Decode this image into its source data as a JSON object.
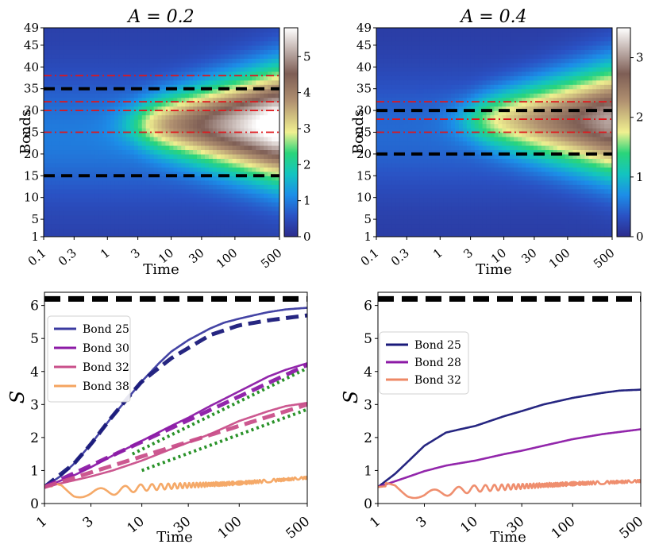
{
  "chart_data": [
    {
      "type": "heatmap",
      "title": "A = 0.2",
      "xlabel": "Time",
      "ylabel": "Bonds",
      "x_scale": "log",
      "xlim": [
        0.1,
        500
      ],
      "ylim": [
        1,
        49
      ],
      "x_ticks": [
        0.1,
        0.3,
        1,
        3,
        10,
        30,
        100,
        500
      ],
      "x_tick_labels": [
        "0.1",
        "0.3",
        "1",
        "3",
        "10",
        "30",
        "100",
        "500"
      ],
      "y_ticks": [
        1,
        5,
        10,
        15,
        20,
        25,
        30,
        35,
        40,
        45,
        49
      ],
      "y_tick_labels": [
        "1",
        "5",
        "10",
        "15",
        "20",
        "25",
        "30",
        "35",
        "40",
        "45",
        "49"
      ],
      "colorbar": {
        "min": 0,
        "max": 5.8,
        "ticks": [
          0,
          1,
          2,
          3,
          4,
          5
        ],
        "tick_labels": [
          "0",
          "1",
          "2",
          "3",
          "4",
          "5"
        ]
      },
      "front_onset_time": 2.5,
      "peak_center_bond": 24,
      "black_dashed_lines": [
        15,
        35
      ],
      "red_dashdot_lines": [
        25,
        30,
        32,
        38
      ]
    },
    {
      "type": "heatmap",
      "title": "A = 0.4",
      "xlabel": "Time",
      "ylabel": "Bonds",
      "x_scale": "log",
      "xlim": [
        0.1,
        500
      ],
      "ylim": [
        1,
        49
      ],
      "x_ticks": [
        0.1,
        0.3,
        1,
        3,
        10,
        30,
        100,
        500
      ],
      "x_tick_labels": [
        "0.1",
        "0.3",
        "1",
        "3",
        "10",
        "30",
        "100",
        "500"
      ],
      "y_ticks": [
        1,
        5,
        10,
        15,
        20,
        25,
        30,
        35,
        40,
        45,
        49
      ],
      "y_tick_labels": [
        "1",
        "5",
        "10",
        "15",
        "20",
        "25",
        "30",
        "35",
        "40",
        "45",
        "49"
      ],
      "colorbar": {
        "min": 0,
        "max": 3.5,
        "ticks": [
          0,
          1,
          2,
          3
        ],
        "tick_labels": [
          "0",
          "1",
          "2",
          "3"
        ]
      },
      "front_onset_time": 2.5,
      "peak_center_bond": 25,
      "black_dashed_lines": [
        20,
        30
      ],
      "red_dashdot_lines": [
        25,
        28,
        32
      ]
    },
    {
      "type": "line",
      "title": "",
      "xlabel": "Time",
      "ylabel": "S",
      "x_scale": "log",
      "xlim": [
        1,
        500
      ],
      "ylim": [
        0,
        6.4
      ],
      "x_ticks": [
        1,
        3,
        10,
        30,
        100,
        500
      ],
      "x_tick_labels": [
        "1",
        "3",
        "10",
        "30",
        "100",
        "500"
      ],
      "y_ticks": [
        0,
        1,
        2,
        3,
        4,
        5,
        6
      ],
      "y_tick_labels": [
        "0",
        "1",
        "2",
        "3",
        "4",
        "5",
        "6"
      ],
      "reference_line": 6.2,
      "legend_position": "upper-left",
      "series": [
        {
          "name": "Bond 25",
          "color": "#3a3aa0",
          "t": [
            1,
            1.5,
            2,
            3,
            5,
            7,
            10,
            15,
            20,
            30,
            50,
            70,
            100,
            150,
            200,
            300,
            500
          ],
          "values": [
            0.5,
            0.85,
            1.2,
            1.8,
            2.65,
            3.15,
            3.7,
            4.25,
            4.6,
            4.95,
            5.3,
            5.48,
            5.6,
            5.72,
            5.8,
            5.88,
            5.93
          ]
        },
        {
          "name": "Bond 30",
          "color": "#8c1aa6",
          "t": [
            1,
            2,
            3,
            5,
            10,
            20,
            30,
            50,
            100,
            200,
            300,
            500
          ],
          "values": [
            0.5,
            0.85,
            1.1,
            1.45,
            1.9,
            2.35,
            2.6,
            2.95,
            3.4,
            3.85,
            4.05,
            4.25
          ]
        },
        {
          "name": "Bond 32",
          "color": "#c94f8a",
          "t": [
            1,
            2,
            3,
            5,
            10,
            20,
            30,
            50,
            100,
            200,
            300,
            500
          ],
          "values": [
            0.5,
            0.7,
            0.82,
            1.0,
            1.3,
            1.65,
            1.85,
            2.1,
            2.5,
            2.8,
            2.95,
            3.05
          ]
        },
        {
          "name": "Bond 38",
          "color": "#f4a460",
          "t": [
            1,
            1.5,
            2,
            3,
            5,
            10,
            30,
            100,
            500
          ],
          "values": [
            0.5,
            0.55,
            0.35,
            0.3,
            0.38,
            0.48,
            0.55,
            0.62,
            0.78
          ]
        }
      ],
      "fits": [
        {
          "style": "dashed",
          "color": "#1a1a7a",
          "t": [
            1,
            2,
            3,
            5,
            10,
            20,
            50,
            100,
            200,
            500
          ],
          "values": [
            0.5,
            1.2,
            1.8,
            2.65,
            3.7,
            4.4,
            5.1,
            5.4,
            5.55,
            5.7
          ]
        },
        {
          "style": "dashed",
          "color": "#8c1aa6",
          "t": [
            1,
            500
          ],
          "values": [
            0.5,
            4.2
          ]
        },
        {
          "style": "dashed",
          "color": "#c94f8a",
          "t": [
            1,
            500
          ],
          "values": [
            0.5,
            3.0
          ]
        },
        {
          "style": "dotted",
          "color": "#1e8c1e",
          "t": [
            8,
            500
          ],
          "values": [
            1.5,
            4.1
          ]
        },
        {
          "style": "dotted",
          "color": "#1e8c1e",
          "t": [
            10,
            500
          ],
          "values": [
            1.0,
            2.85
          ]
        }
      ]
    },
    {
      "type": "line",
      "title": "",
      "xlabel": "Time",
      "ylabel": "S",
      "x_scale": "log",
      "xlim": [
        1,
        500
      ],
      "ylim": [
        0,
        6.4
      ],
      "x_ticks": [
        1,
        3,
        10,
        30,
        100,
        500
      ],
      "x_tick_labels": [
        "1",
        "3",
        "10",
        "30",
        "100",
        "500"
      ],
      "y_ticks": [
        0,
        1,
        2,
        3,
        4,
        5,
        6
      ],
      "y_tick_labels": [
        "0",
        "1",
        "2",
        "3",
        "4",
        "5",
        "6"
      ],
      "reference_line": 6.2,
      "legend_position": "upper-left",
      "series": [
        {
          "name": "Bond 25",
          "color": "#1a1a7a",
          "t": [
            1,
            1.5,
            2,
            3,
            5,
            7,
            10,
            20,
            30,
            50,
            100,
            200,
            300,
            500
          ],
          "values": [
            0.5,
            0.9,
            1.25,
            1.75,
            2.15,
            2.25,
            2.35,
            2.65,
            2.8,
            3.0,
            3.2,
            3.35,
            3.42,
            3.45
          ]
        },
        {
          "name": "Bond 28",
          "color": "#8c1aa6",
          "t": [
            1,
            2,
            3,
            5,
            10,
            20,
            30,
            50,
            100,
            200,
            500
          ],
          "values": [
            0.5,
            0.8,
            0.98,
            1.15,
            1.3,
            1.5,
            1.6,
            1.75,
            1.95,
            2.1,
            2.25
          ]
        },
        {
          "name": "Bond 32",
          "color": "#ee8866",
          "t": [
            1,
            1.5,
            2,
            3,
            5,
            10,
            30,
            100,
            500
          ],
          "values": [
            0.5,
            0.55,
            0.35,
            0.25,
            0.35,
            0.45,
            0.52,
            0.6,
            0.68
          ]
        }
      ]
    }
  ]
}
